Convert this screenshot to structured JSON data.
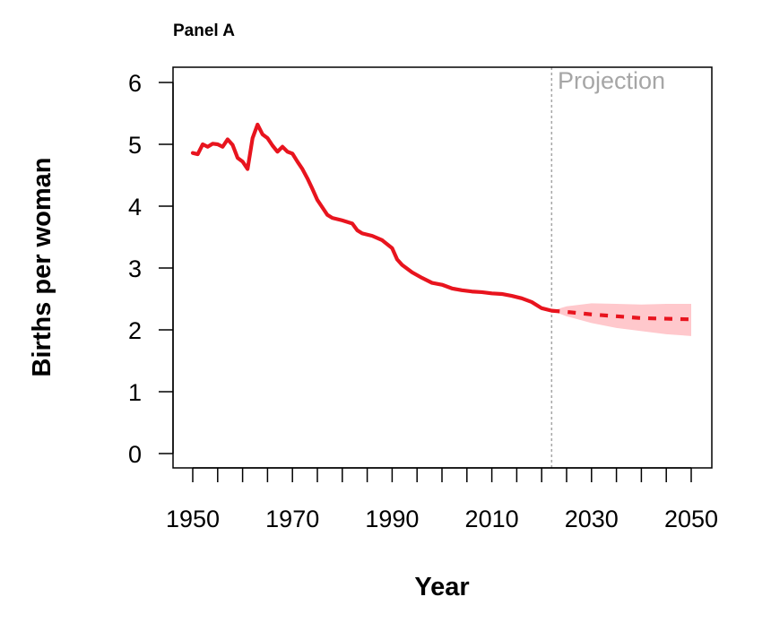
{
  "chart_data": {
    "type": "line",
    "title": "Panel A",
    "xlabel": "Year",
    "ylabel": "Births per woman",
    "xlim": [
      1950,
      2050
    ],
    "ylim": [
      0,
      6
    ],
    "x_ticks": [
      1950,
      1955,
      1960,
      1965,
      1970,
      1975,
      1980,
      1985,
      1990,
      1995,
      2000,
      2005,
      2010,
      2015,
      2020,
      2025,
      2030,
      2035,
      2040,
      2045,
      2050
    ],
    "x_tick_labels": [
      "1950",
      "1970",
      "1990",
      "2010",
      "2030",
      "2050"
    ],
    "y_ticks": [
      0,
      1,
      2,
      3,
      4,
      5,
      6
    ],
    "y_tick_labels": [
      "0",
      "1",
      "2",
      "3",
      "4",
      "5",
      "6"
    ],
    "grid": false,
    "colors": {
      "line": "#e8141e",
      "band": "#ffc8cc",
      "divider": "#a6a6a6"
    },
    "projection_start": 2022,
    "projection_label": "Projection",
    "series": [
      {
        "style": "solid",
        "x": [
          1950,
          1951,
          1952,
          1953,
          1954,
          1955,
          1956,
          1957,
          1958,
          1959,
          1960,
          1961,
          1962,
          1963,
          1964,
          1965,
          1966,
          1967,
          1968,
          1969,
          1970,
          1971,
          1972,
          1973,
          1974,
          1975,
          1976,
          1977,
          1978,
          1980,
          1982,
          1983,
          1984,
          1986,
          1988,
          1990,
          1991,
          1992,
          1994,
          1996,
          1998,
          2000,
          2002,
          2004,
          2006,
          2008,
          2010,
          2012,
          2014,
          2016,
          2018,
          2020,
          2022
        ],
        "y": [
          4.86,
          4.84,
          5.0,
          4.96,
          5.01,
          5.0,
          4.96,
          5.08,
          4.99,
          4.78,
          4.72,
          4.6,
          5.1,
          5.32,
          5.16,
          5.1,
          4.98,
          4.88,
          4.96,
          4.88,
          4.85,
          4.72,
          4.6,
          4.45,
          4.28,
          4.1,
          3.98,
          3.86,
          3.81,
          3.77,
          3.72,
          3.61,
          3.56,
          3.52,
          3.45,
          3.32,
          3.14,
          3.05,
          2.93,
          2.84,
          2.76,
          2.73,
          2.67,
          2.64,
          2.62,
          2.61,
          2.59,
          2.58,
          2.55,
          2.51,
          2.45,
          2.35,
          2.31
        ]
      },
      {
        "style": "dashed",
        "x": [
          2022,
          2025,
          2030,
          2035,
          2040,
          2045,
          2050
        ],
        "y": [
          2.31,
          2.29,
          2.25,
          2.22,
          2.19,
          2.18,
          2.17
        ],
        "band_lower": [
          2.31,
          2.22,
          2.11,
          2.03,
          1.98,
          1.93,
          1.9
        ],
        "band_upper": [
          2.31,
          2.38,
          2.43,
          2.42,
          2.41,
          2.42,
          2.42
        ]
      }
    ]
  }
}
